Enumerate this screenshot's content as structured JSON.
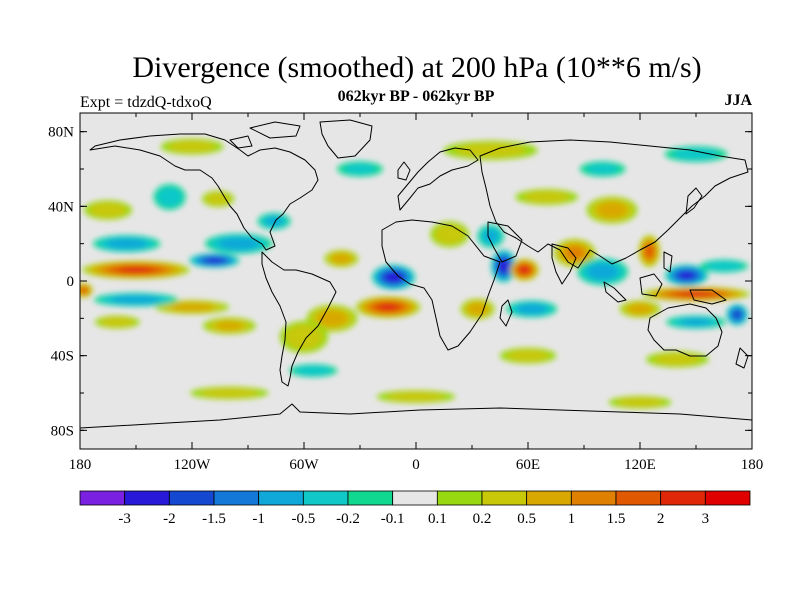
{
  "title": "Divergence (smoothed) at 200 hPa (10**6 m/s)",
  "subtitle_left": "Expt = tdzdQ-tdxoQ",
  "subtitle_center": "062kyr BP - 062kyr BP",
  "subtitle_right": "JJA",
  "map": {
    "projection": "cylindrical equidistant",
    "lon_range": [
      -180,
      180
    ],
    "lat_range": [
      -90,
      90
    ],
    "x_tick_labels": [
      {
        "lon": -180,
        "label": "180"
      },
      {
        "lon": -120,
        "label": "120W"
      },
      {
        "lon": -60,
        "label": "60W"
      },
      {
        "lon": 0,
        "label": "0"
      },
      {
        "lon": 60,
        "label": "60E"
      },
      {
        "lon": 120,
        "label": "120E"
      },
      {
        "lon": 180,
        "label": "180"
      }
    ],
    "y_tick_labels": [
      {
        "lat": 80,
        "label": "80N"
      },
      {
        "lat": 40,
        "label": "40N"
      },
      {
        "lat": 0,
        "label": "0"
      },
      {
        "lat": -40,
        "label": "40S"
      },
      {
        "lat": -80,
        "label": "80S"
      }
    ],
    "background_color": "#e6e6e6",
    "coastline_color": "#000000"
  },
  "chart_data": {
    "type": "heatmap",
    "variable": "Divergence (smoothed) at 200 hPa",
    "units": "10**6 m/s",
    "season": "JJA",
    "experiment": "tdzdQ-tdxoQ",
    "period": "062kyr BP - 062kyr BP",
    "colorbar": {
      "levels": [
        -3,
        -2,
        -1.5,
        -1,
        -0.5,
        -0.2,
        -0.1,
        0.1,
        0.2,
        0.5,
        1,
        1.5,
        2,
        3
      ],
      "labels": [
        "-3",
        "-2",
        "-1.5",
        "-1",
        "-0.5",
        "-0.2",
        "-0.1",
        "0.1",
        "0.2",
        "0.5",
        "1",
        "1.5",
        "2",
        "3"
      ],
      "colors": [
        "#7a20e0",
        "#2818d8",
        "#1448d0",
        "#1478d8",
        "#10a8d8",
        "#10c8c8",
        "#10d890",
        "#e6e6e6",
        "#98d810",
        "#c8c808",
        "#d8a800",
        "#e08000",
        "#e05800",
        "#e02808",
        "#e00000"
      ]
    },
    "features": [
      {
        "lon": -150,
        "lat": 6,
        "rx": 30,
        "ry": 5,
        "value": 2.5
      },
      {
        "lon": -178,
        "lat": -5,
        "rx": 5,
        "ry": 4,
        "value": 2.0
      },
      {
        "lon": -120,
        "lat": -14,
        "rx": 22,
        "ry": 4,
        "value": 1.0
      },
      {
        "lon": -100,
        "lat": -24,
        "rx": 16,
        "ry": 5,
        "value": 0.8
      },
      {
        "lon": -160,
        "lat": -22,
        "rx": 14,
        "ry": 4,
        "value": 0.6
      },
      {
        "lon": -108,
        "lat": 11,
        "rx": 14,
        "ry": 4,
        "value": -2.5
      },
      {
        "lon": -155,
        "lat": 20,
        "rx": 20,
        "ry": 5,
        "value": -1.0
      },
      {
        "lon": -95,
        "lat": 20,
        "rx": 20,
        "ry": 6,
        "value": -1.0
      },
      {
        "lon": -150,
        "lat": -10,
        "rx": 25,
        "ry": 4,
        "value": -1.0
      },
      {
        "lon": -165,
        "lat": 38,
        "rx": 15,
        "ry": 6,
        "value": 0.6
      },
      {
        "lon": -132,
        "lat": 45,
        "rx": 10,
        "ry": 8,
        "value": -0.6
      },
      {
        "lon": -106,
        "lat": 44,
        "rx": 10,
        "ry": 5,
        "value": 0.6
      },
      {
        "lon": -76,
        "lat": 32,
        "rx": 10,
        "ry": 5,
        "value": -0.8
      },
      {
        "lon": -40,
        "lat": 12,
        "rx": 10,
        "ry": 5,
        "value": 1.0
      },
      {
        "lon": -12,
        "lat": 2,
        "rx": 12,
        "ry": 7,
        "value": -2.8
      },
      {
        "lon": -15,
        "lat": -14,
        "rx": 18,
        "ry": 6,
        "value": 2.5
      },
      {
        "lon": -45,
        "lat": -20,
        "rx": 15,
        "ry": 8,
        "value": 1.0
      },
      {
        "lon": -60,
        "lat": -30,
        "rx": 15,
        "ry": 10,
        "value": 0.6
      },
      {
        "lon": -55,
        "lat": -48,
        "rx": 15,
        "ry": 4,
        "value": -0.6
      },
      {
        "lon": 18,
        "lat": 25,
        "rx": 12,
        "ry": 8,
        "value": 0.6
      },
      {
        "lon": 40,
        "lat": 24,
        "rx": 8,
        "ry": 7,
        "value": -0.8
      },
      {
        "lon": 47,
        "lat": 8,
        "rx": 7,
        "ry": 9,
        "value": -2.8
      },
      {
        "lon": 58,
        "lat": 6,
        "rx": 8,
        "ry": 6,
        "value": 2.8
      },
      {
        "lon": 33,
        "lat": -15,
        "rx": 10,
        "ry": 6,
        "value": 1.0
      },
      {
        "lon": 62,
        "lat": -15,
        "rx": 15,
        "ry": 5,
        "value": -1.0
      },
      {
        "lon": 85,
        "lat": 15,
        "rx": 12,
        "ry": 8,
        "value": 1.5
      },
      {
        "lon": 70,
        "lat": 45,
        "rx": 20,
        "ry": 5,
        "value": 0.5
      },
      {
        "lon": 105,
        "lat": 38,
        "rx": 15,
        "ry": 8,
        "value": 1.0
      },
      {
        "lon": 100,
        "lat": 5,
        "rx": 15,
        "ry": 8,
        "value": -1.0
      },
      {
        "lon": 125,
        "lat": 16,
        "rx": 6,
        "ry": 9,
        "value": 2.0
      },
      {
        "lon": 145,
        "lat": 3,
        "rx": 12,
        "ry": 6,
        "value": -2.5
      },
      {
        "lon": 165,
        "lat": 8,
        "rx": 15,
        "ry": 4,
        "value": -0.6
      },
      {
        "lon": 150,
        "lat": -7,
        "rx": 30,
        "ry": 4,
        "value": 2.6
      },
      {
        "lon": 120,
        "lat": -15,
        "rx": 12,
        "ry": 5,
        "value": 1.0
      },
      {
        "lon": 150,
        "lat": -22,
        "rx": 18,
        "ry": 4,
        "value": -0.8
      },
      {
        "lon": 172,
        "lat": -18,
        "rx": 6,
        "ry": 6,
        "value": -2.2
      },
      {
        "lon": 60,
        "lat": -40,
        "rx": 18,
        "ry": 5,
        "value": 0.5
      },
      {
        "lon": 140,
        "lat": -42,
        "rx": 20,
        "ry": 5,
        "value": 0.5
      },
      {
        "lon": -100,
        "lat": -60,
        "rx": 25,
        "ry": 4,
        "value": 0.5
      },
      {
        "lon": 0,
        "lat": -62,
        "rx": 25,
        "ry": 4,
        "value": 0.5
      },
      {
        "lon": 120,
        "lat": -65,
        "rx": 20,
        "ry": 4,
        "value": 0.5
      },
      {
        "lon": -120,
        "lat": 72,
        "rx": 20,
        "ry": 5,
        "value": 0.5
      },
      {
        "lon": 40,
        "lat": 70,
        "rx": 30,
        "ry": 6,
        "value": 0.5
      },
      {
        "lon": 150,
        "lat": 68,
        "rx": 20,
        "ry": 5,
        "value": -0.5
      },
      {
        "lon": -30,
        "lat": 60,
        "rx": 15,
        "ry": 5,
        "value": -0.4
      },
      {
        "lon": 100,
        "lat": 60,
        "rx": 15,
        "ry": 5,
        "value": -0.4
      }
    ]
  }
}
